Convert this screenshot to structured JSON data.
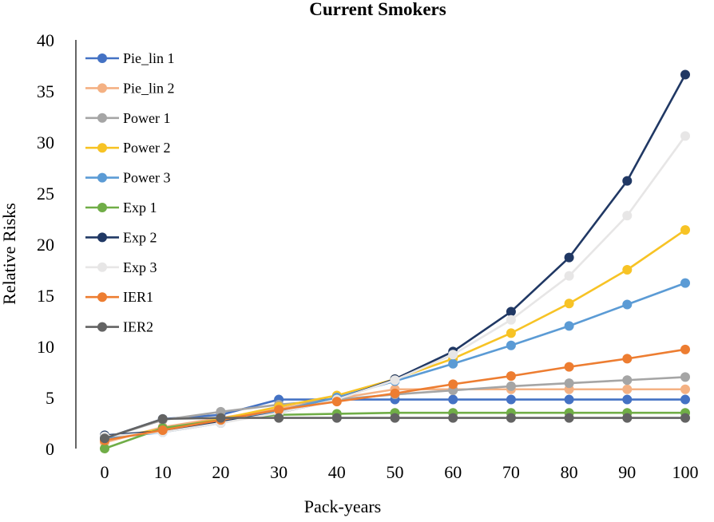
{
  "chart_data": {
    "type": "line",
    "title": "Current Smokers",
    "xlabel": "Pack-years",
    "ylabel": "Relative Risks",
    "x": [
      0,
      10,
      20,
      30,
      40,
      50,
      60,
      70,
      80,
      90,
      100
    ],
    "xticks": [
      "0",
      "10",
      "20",
      "30",
      "40",
      "50",
      "60",
      "70",
      "80",
      "90",
      "100"
    ],
    "yticks": [
      "0",
      "5",
      "10",
      "15",
      "20",
      "25",
      "30",
      "35",
      "40"
    ],
    "xlim": [
      0,
      100
    ],
    "ylim": [
      0,
      40
    ],
    "grid": false,
    "legend_position": "top-left",
    "series": [
      {
        "name": "Pie_lin 1",
        "color": "#4472C4",
        "values": [
          1.0,
          2.9,
          3.3,
          4.8,
          4.8,
          4.8,
          4.8,
          4.8,
          4.8,
          4.8,
          4.8
        ]
      },
      {
        "name": "Pie_lin 2",
        "color": "#F4B183",
        "values": [
          0.6,
          2.1,
          3.0,
          3.9,
          4.9,
          5.8,
          5.8,
          5.8,
          5.8,
          5.8,
          5.8
        ]
      },
      {
        "name": "Power 1",
        "color": "#A5A5A5",
        "values": [
          1.0,
          2.8,
          3.6,
          4.3,
          4.8,
          5.3,
          5.7,
          6.1,
          6.4,
          6.7,
          7.0
        ]
      },
      {
        "name": "Power 2",
        "color": "#F7C325",
        "values": [
          1.0,
          1.9,
          2.9,
          4.1,
          5.2,
          6.8,
          8.8,
          11.3,
          14.2,
          17.5,
          21.4
        ]
      },
      {
        "name": "Power 3",
        "color": "#5B9BD5",
        "values": [
          1.0,
          1.6,
          2.5,
          3.7,
          5.0,
          6.6,
          8.3,
          10.1,
          12.0,
          14.1,
          16.2
        ]
      },
      {
        "name": "Exp 1",
        "color": "#70AD47",
        "values": [
          0.0,
          2.0,
          2.8,
          3.3,
          3.4,
          3.5,
          3.5,
          3.5,
          3.5,
          3.5,
          3.5
        ]
      },
      {
        "name": "Exp 2",
        "color": "#203864",
        "values": [
          1.3,
          1.7,
          2.6,
          3.5,
          4.8,
          6.8,
          9.5,
          13.4,
          18.7,
          26.2,
          36.6
        ]
      },
      {
        "name": "Exp 3",
        "color": "#E7E6E6",
        "values": [
          1.2,
          1.6,
          2.5,
          3.5,
          4.8,
          6.7,
          9.2,
          12.6,
          16.9,
          22.8,
          30.6
        ]
      },
      {
        "name": "IER1",
        "color": "#ED7D31",
        "values": [
          0.8,
          1.8,
          2.8,
          3.8,
          4.6,
          5.4,
          6.3,
          7.1,
          8.0,
          8.8,
          9.7
        ]
      },
      {
        "name": "IER2",
        "color": "#636363",
        "values": [
          1.0,
          2.9,
          3.0,
          3.0,
          3.0,
          3.0,
          3.0,
          3.0,
          3.0,
          3.0,
          3.0
        ]
      }
    ]
  }
}
